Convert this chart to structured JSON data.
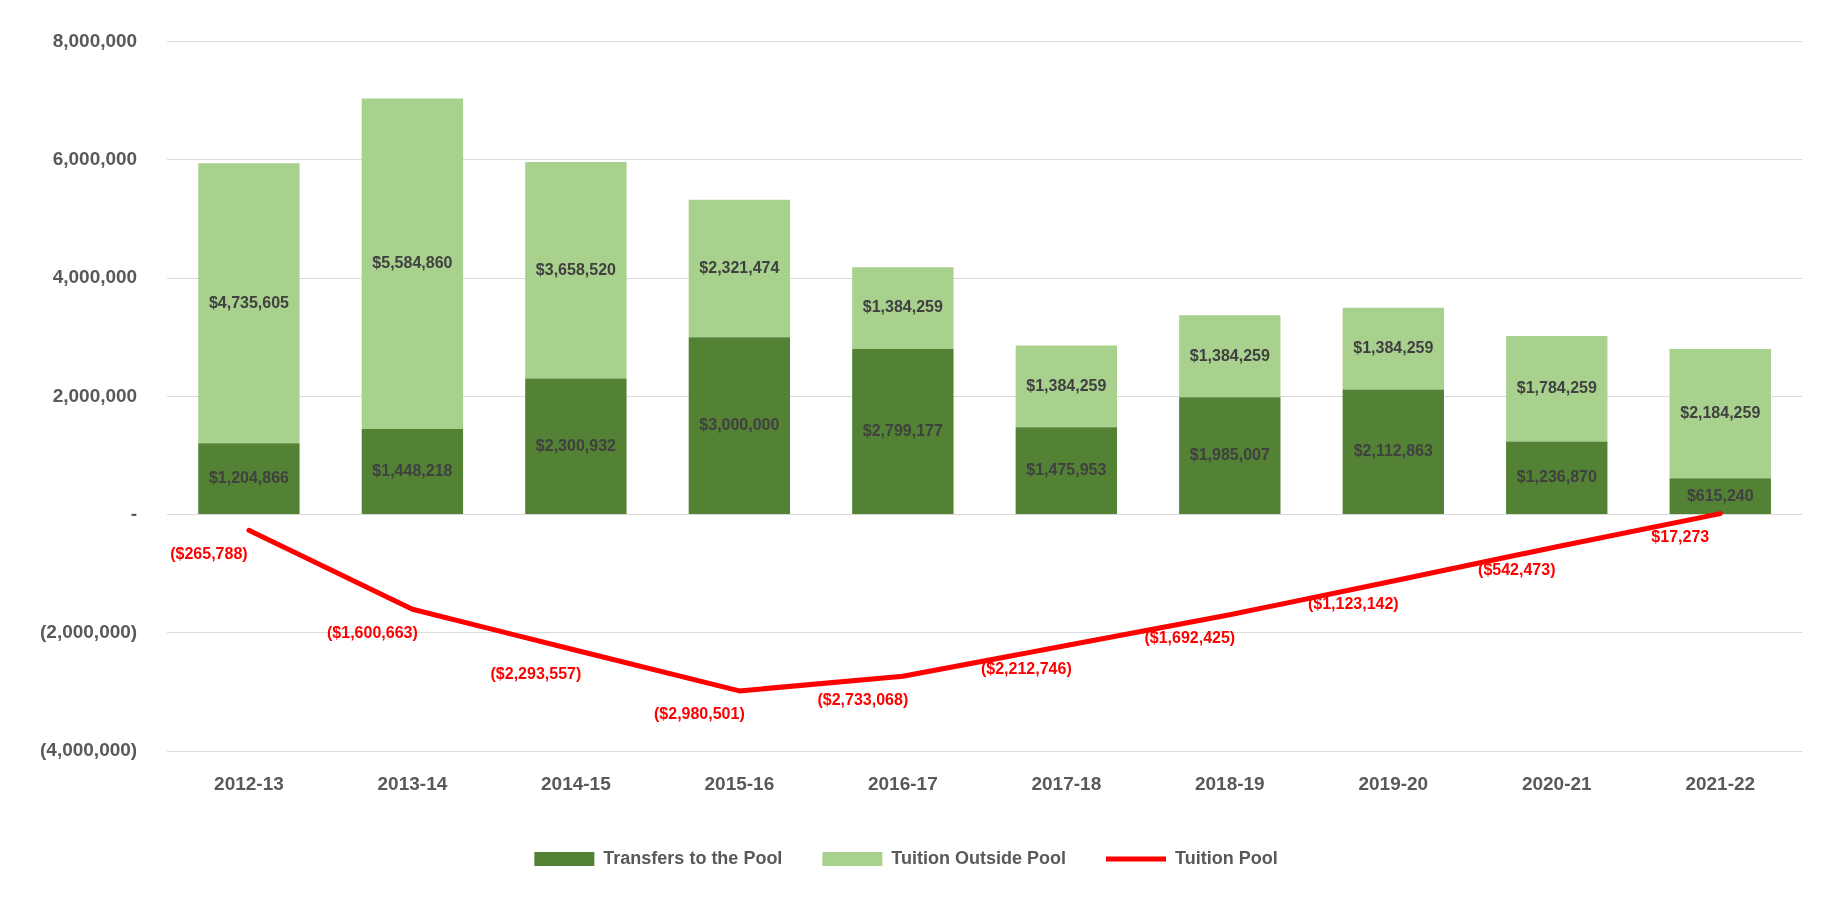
{
  "chart_data": {
    "type": "bar",
    "stacked": true,
    "categories": [
      "2012-13",
      "2013-14",
      "2014-15",
      "2015-16",
      "2016-17",
      "2017-18",
      "2018-19",
      "2019-20",
      "2020-21",
      "2021-22"
    ],
    "series": [
      {
        "name": "Transfers to the Pool",
        "color": "#548235",
        "values": [
          1204866,
          1448218,
          2300932,
          3000000,
          2799177,
          1475953,
          1985007,
          2112863,
          1236870,
          615240
        ],
        "value_labels": [
          "$1,204,866",
          "$1,448,218",
          "$2,300,932",
          "$3,000,000",
          "$2,799,177",
          "$1,475,953",
          "$1,985,007",
          "$2,112,863",
          "$1,236,870",
          "$615,240"
        ]
      },
      {
        "name": "Tuition Outside Pool",
        "color": "#a9d18e",
        "values": [
          4735605,
          5584860,
          3658520,
          2321474,
          1384259,
          1384259,
          1384259,
          1384259,
          1784259,
          2184259
        ],
        "value_labels": [
          "$4,735,605",
          "$5,584,860",
          "$3,658,520",
          "$2,321,474",
          "$1,384,259",
          "$1,384,259",
          "$1,384,259",
          "$1,384,259",
          "$1,784,259",
          "$2,184,259"
        ]
      },
      {
        "name": "Tuition Pool",
        "type": "line",
        "color": "#ff0000",
        "values": [
          -265788,
          -1600663,
          -2293557,
          -2980501,
          -2733068,
          -2212746,
          -1692425,
          -1123142,
          -542473,
          17273
        ],
        "value_labels": [
          "($265,788)",
          "($1,600,663)",
          "($2,293,557)",
          "($2,980,501)",
          "($2,733,068)",
          "($2,212,746)",
          "($1,692,425)",
          "($1,123,142)",
          "($542,473)",
          "$17,273"
        ]
      }
    ],
    "ylim": [
      -4000000,
      8000000
    ],
    "yticks": [
      {
        "value": -4000000,
        "label": "(4,000,000)"
      },
      {
        "value": -2000000,
        "label": "(2,000,000)"
      },
      {
        "value": 0,
        "label": "-"
      },
      {
        "value": 2000000,
        "label": "2,000,000"
      },
      {
        "value": 4000000,
        "label": "4,000,000"
      },
      {
        "value": 6000000,
        "label": "6,000,000"
      },
      {
        "value": 8000000,
        "label": "8,000,000"
      }
    ],
    "grid": "y",
    "legend": "bottom"
  }
}
